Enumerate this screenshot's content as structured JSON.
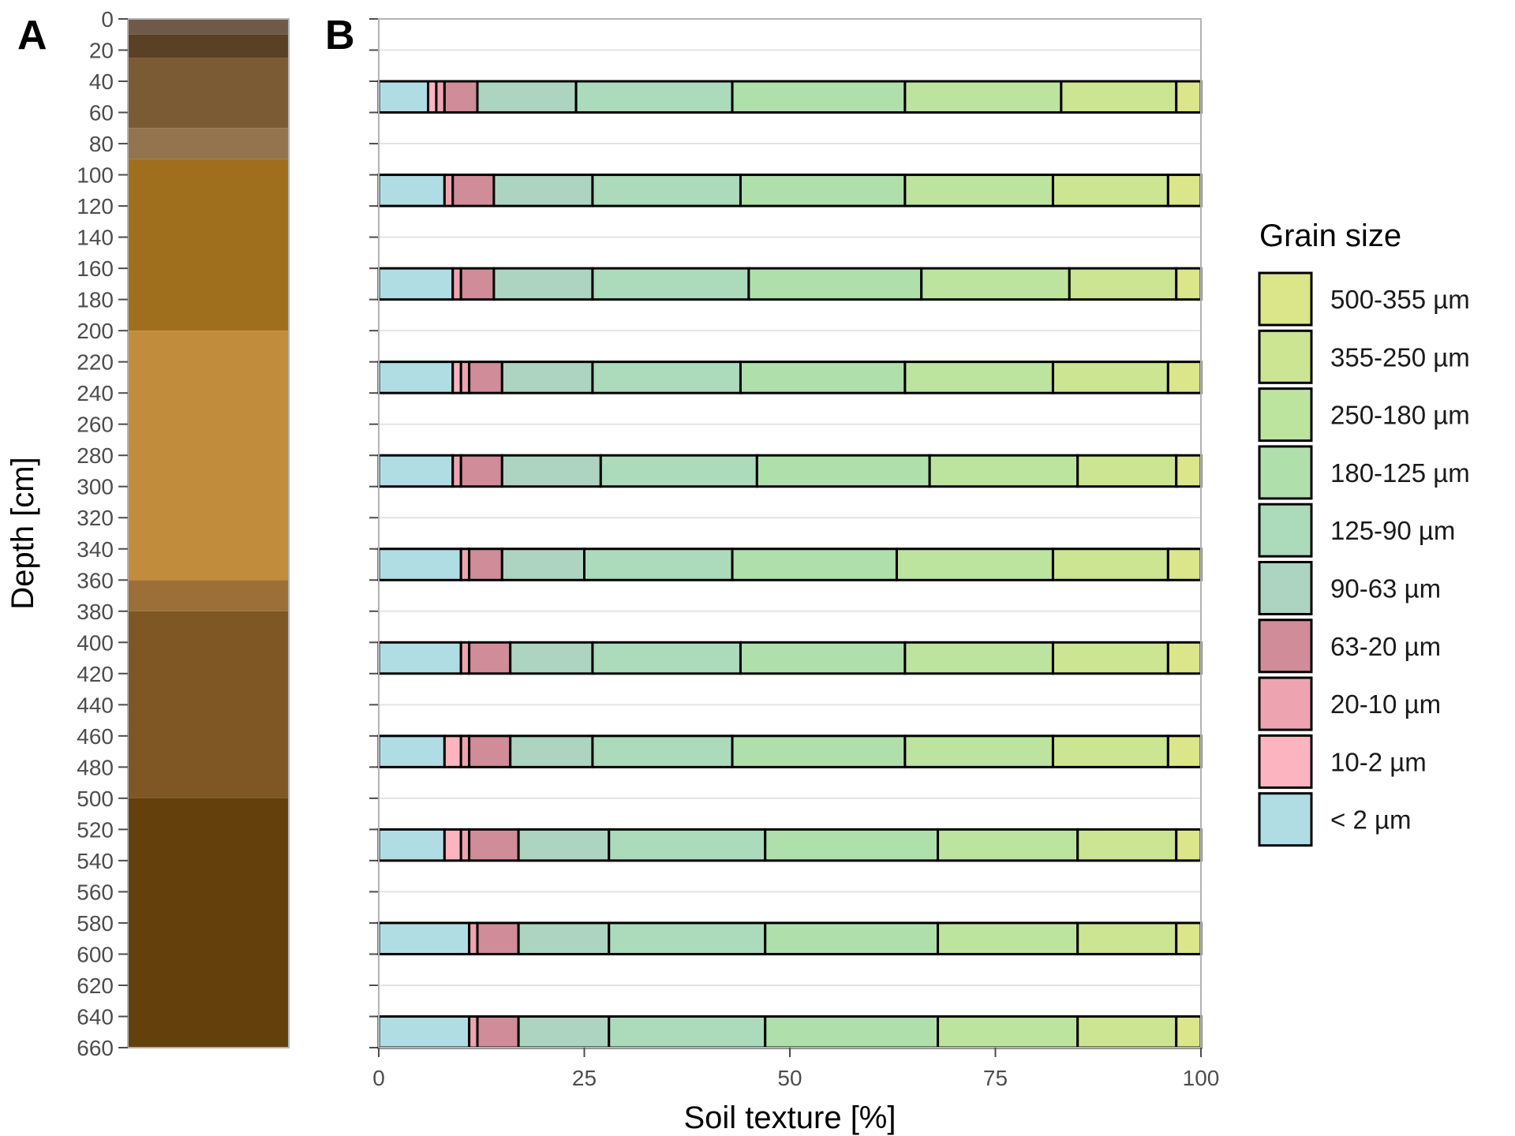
{
  "panel_labels": {
    "a": "A",
    "b": "B"
  },
  "legend": {
    "title": "Grain size"
  },
  "chart_data": [
    {
      "type": "stacked-column",
      "panel": "A",
      "ylabel": "Depth [cm]",
      "ylim": [
        0,
        660
      ],
      "yticks": [
        0,
        20,
        40,
        60,
        80,
        100,
        120,
        140,
        160,
        180,
        200,
        220,
        240,
        260,
        280,
        300,
        320,
        340,
        360,
        380,
        400,
        420,
        440,
        460,
        480,
        500,
        520,
        540,
        560,
        580,
        600,
        620,
        640,
        660
      ],
      "y_reversed": true,
      "layers": [
        {
          "top": 0,
          "bottom": 10,
          "color": "#6f5a49"
        },
        {
          "top": 10,
          "bottom": 25,
          "color": "#5a4025"
        },
        {
          "top": 25,
          "bottom": 70,
          "color": "#7b5b34"
        },
        {
          "top": 70,
          "bottom": 90,
          "color": "#93744f"
        },
        {
          "top": 90,
          "bottom": 200,
          "color": "#a06f1e"
        },
        {
          "top": 200,
          "bottom": 360,
          "color": "#c18d3c"
        },
        {
          "top": 360,
          "bottom": 380,
          "color": "#9c6f38"
        },
        {
          "top": 380,
          "bottom": 500,
          "color": "#7e5725"
        },
        {
          "top": 500,
          "bottom": 660,
          "color": "#64400c"
        }
      ]
    },
    {
      "type": "bar",
      "orientation": "horizontal",
      "stacked": true,
      "panel": "B",
      "xlabel": "Soil texture [%]",
      "xlim": [
        0,
        100
      ],
      "xticks": [
        0,
        25,
        50,
        75,
        100
      ],
      "ylim": [
        0,
        660
      ],
      "y_reversed": true,
      "grid": true,
      "legend_position": "right",
      "series": [
        {
          "name": "< 2 µm",
          "color": "#b0dde4"
        },
        {
          "name": "10-2 µm",
          "color": "#fbb4c0"
        },
        {
          "name": "20-10 µm",
          "color": "#eea4b0"
        },
        {
          "name": "63-20 µm",
          "color": "#d08c98"
        },
        {
          "name": "90-63 µm",
          "color": "#add4c1"
        },
        {
          "name": "125-90 µm",
          "color": "#abdbbb"
        },
        {
          "name": "180-125 µm",
          "color": "#afe0ac"
        },
        {
          "name": "250-180 µm",
          "color": "#bce49f"
        },
        {
          "name": "355-250 µm",
          "color": "#cbe592"
        },
        {
          "name": "500-355 µm",
          "color": "#dbe68a"
        }
      ],
      "samples": [
        {
          "depth_top": 40,
          "depth_bottom": 60,
          "values": [
            6,
            1,
            1,
            4,
            12,
            19,
            21,
            19,
            14,
            3
          ]
        },
        {
          "depth_top": 100,
          "depth_bottom": 120,
          "values": [
            8,
            0,
            1,
            5,
            12,
            18,
            20,
            18,
            14,
            4
          ]
        },
        {
          "depth_top": 160,
          "depth_bottom": 180,
          "values": [
            9,
            0,
            1,
            4,
            12,
            19,
            21,
            18,
            13,
            3
          ]
        },
        {
          "depth_top": 220,
          "depth_bottom": 240,
          "values": [
            9,
            1,
            1,
            4,
            11,
            18,
            20,
            18,
            14,
            4
          ]
        },
        {
          "depth_top": 280,
          "depth_bottom": 300,
          "values": [
            9,
            0,
            1,
            5,
            12,
            19,
            21,
            18,
            12,
            3
          ]
        },
        {
          "depth_top": 340,
          "depth_bottom": 360,
          "values": [
            10,
            0,
            1,
            4,
            10,
            18,
            20,
            19,
            14,
            4
          ]
        },
        {
          "depth_top": 400,
          "depth_bottom": 420,
          "values": [
            10,
            0,
            1,
            5,
            10,
            18,
            20,
            18,
            14,
            4
          ]
        },
        {
          "depth_top": 460,
          "depth_bottom": 480,
          "values": [
            8,
            2,
            1,
            5,
            10,
            17,
            21,
            18,
            14,
            4
          ]
        },
        {
          "depth_top": 520,
          "depth_bottom": 540,
          "values": [
            8,
            2,
            1,
            6,
            11,
            19,
            21,
            17,
            12,
            3
          ]
        },
        {
          "depth_top": 580,
          "depth_bottom": 600,
          "values": [
            11,
            0,
            1,
            5,
            11,
            19,
            21,
            17,
            12,
            3
          ]
        },
        {
          "depth_top": 640,
          "depth_bottom": 660,
          "values": [
            11,
            0,
            1,
            5,
            11,
            19,
            21,
            17,
            12,
            3
          ]
        }
      ]
    }
  ]
}
